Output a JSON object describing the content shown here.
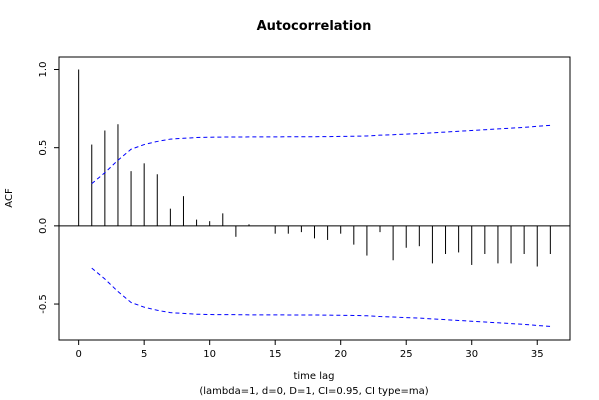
{
  "chart_data": {
    "type": "bar",
    "title": "Autocorrelation",
    "xlabel": "time lag",
    "subtitle": "(lambda=1, d=0, D=1, CI=0.95, CI type=ma)",
    "ylabel": "ACF",
    "xlim": [
      -1.5,
      37.5
    ],
    "ylim": [
      -0.73,
      1.08
    ],
    "x_ticks": [
      0,
      5,
      10,
      15,
      20,
      25,
      30,
      35
    ],
    "y_ticks": [
      -0.5,
      0.0,
      0.5,
      1.0
    ],
    "y_tick_labels": [
      "-0.5",
      "0.0",
      "0.5",
      "1.0"
    ],
    "series": [
      {
        "lags": [
          0,
          1,
          2,
          3,
          4,
          5,
          6,
          7,
          8,
          9,
          10,
          11,
          12,
          13,
          14,
          15,
          16,
          17,
          18,
          19,
          20,
          21,
          22,
          23,
          24,
          25,
          26,
          27,
          28,
          29,
          30,
          31,
          32,
          33,
          34,
          35,
          36
        ],
        "values": [
          1.0,
          0.52,
          0.61,
          0.65,
          0.35,
          0.4,
          0.33,
          0.11,
          0.19,
          0.04,
          0.03,
          0.08,
          -0.07,
          0.01,
          0.0,
          -0.05,
          -0.05,
          -0.04,
          -0.08,
          -0.09,
          -0.05,
          -0.12,
          -0.19,
          -0.04,
          -0.22,
          -0.14,
          -0.13,
          -0.24,
          -0.18,
          -0.17,
          -0.25,
          -0.18,
          -0.24,
          -0.24,
          -0.18,
          -0.26,
          -0.18
        ]
      }
    ],
    "confidence_band": {
      "lags": [
        1,
        2,
        3,
        4,
        5,
        6,
        7,
        8,
        9,
        10,
        11,
        12,
        13,
        14,
        15,
        16,
        17,
        18,
        19,
        20,
        21,
        22,
        23,
        24,
        25,
        26,
        27,
        28,
        29,
        30,
        31,
        32,
        33,
        34,
        35,
        36
      ],
      "upper": [
        0.27,
        0.34,
        0.42,
        0.49,
        0.52,
        0.54,
        0.555,
        0.56,
        0.565,
        0.567,
        0.568,
        0.568,
        0.569,
        0.569,
        0.569,
        0.57,
        0.57,
        0.57,
        0.571,
        0.572,
        0.573,
        0.575,
        0.58,
        0.583,
        0.587,
        0.59,
        0.595,
        0.6,
        0.605,
        0.61,
        0.615,
        0.62,
        0.625,
        0.63,
        0.637,
        0.643
      ],
      "lower": [
        -0.27,
        -0.34,
        -0.42,
        -0.49,
        -0.52,
        -0.54,
        -0.555,
        -0.56,
        -0.565,
        -0.567,
        -0.568,
        -0.568,
        -0.569,
        -0.569,
        -0.569,
        -0.57,
        -0.57,
        -0.57,
        -0.571,
        -0.572,
        -0.573,
        -0.575,
        -0.58,
        -0.583,
        -0.587,
        -0.59,
        -0.595,
        -0.6,
        -0.605,
        -0.61,
        -0.615,
        -0.62,
        -0.625,
        -0.63,
        -0.637,
        -0.643
      ],
      "color": "#0000ff"
    },
    "bar_color": "#000000",
    "zero_line": true,
    "grid": false
  }
}
